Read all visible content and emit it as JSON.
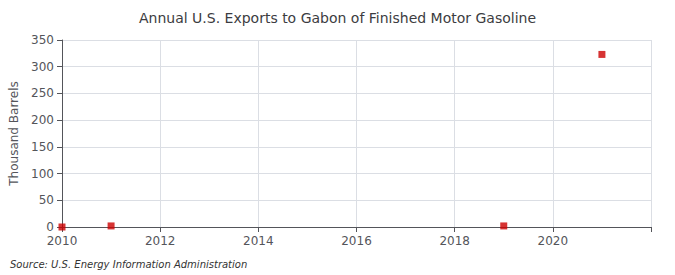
{
  "chart_data": {
    "type": "scatter",
    "title": "Annual U.S. Exports to Gabon of Finished Motor Gasoline",
    "ylabel": "Thousand Barrels",
    "source": "Source: U.S. Energy Information Administration",
    "x": [
      2010,
      2011,
      2019,
      2021
    ],
    "values": [
      0,
      2,
      2,
      323
    ],
    "color": "#cc0000",
    "marker": "square",
    "xlim": [
      2010,
      2022
    ],
    "xticks": [
      2010,
      2012,
      2014,
      2016,
      2018,
      2020
    ],
    "ylim": [
      0,
      350
    ],
    "yticks": [
      0,
      50,
      100,
      150,
      200,
      250,
      300,
      350
    ],
    "grid": true
  }
}
